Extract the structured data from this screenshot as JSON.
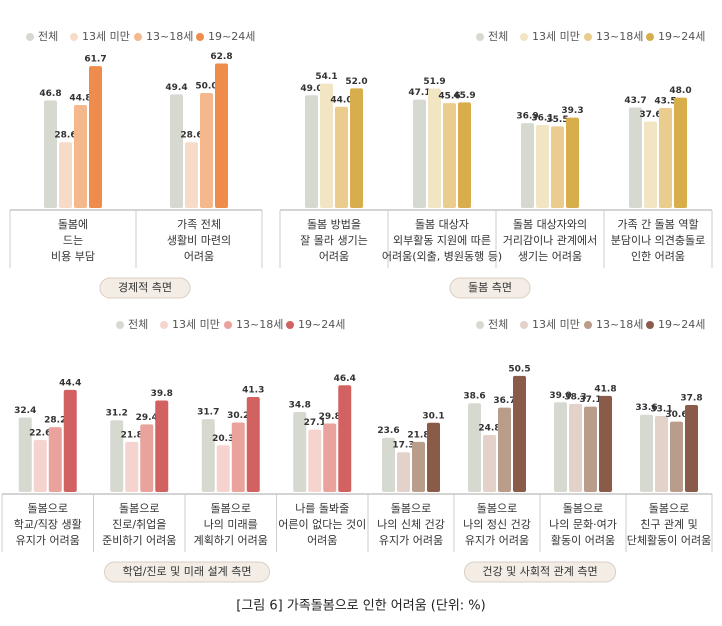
{
  "chart_data": [
    {
      "type": "bar",
      "title": "경제적 측면",
      "categories": [
        [
          "돌봄에",
          "드는",
          "비용 부담"
        ],
        [
          "가족 전체",
          "생활비 마련의",
          "어려움"
        ]
      ],
      "series": [
        {
          "name": "전체",
          "color": "#d6d9d0",
          "values": [
            46.8,
            49.4
          ],
          "value_labels": [
            "46.8",
            "49.4"
          ]
        },
        {
          "name": "13세 미만",
          "color": "#f6dcc8",
          "values": [
            28.6,
            28.6
          ],
          "value_labels": [
            "28.6",
            "28.6"
          ]
        },
        {
          "name": "13~18세",
          "color": "#f4b88c",
          "values": [
            44.8,
            50.0
          ],
          "value_labels": [
            "44.8",
            "50.0"
          ]
        },
        {
          "name": "19~24세",
          "color": "#ef8b4b",
          "values": [
            61.7,
            62.8
          ],
          "value_labels": [
            "61.7",
            "62.8"
          ]
        }
      ]
    },
    {
      "type": "bar",
      "title": "돌봄 측면",
      "categories": [
        [
          "돌봄 방법을",
          "잘 몰라 생기는",
          "어려움"
        ],
        [
          "돌봄 대상자",
          "외부활동 지원에 따른",
          "어려움(외출, 병원동행 등)"
        ],
        [
          "돌봄 대상자와의",
          "거리감이나 관계에서",
          "생기는 어려움"
        ],
        [
          "가족 간 돌봄 역할",
          "분담이나 의견충돌로",
          "인한 어려움"
        ]
      ],
      "series": [
        {
          "name": "전체",
          "color": "#d6d9d0",
          "values": [
            49.0,
            47.1,
            36.9,
            43.7
          ],
          "value_labels": [
            "49.0",
            "47.1",
            "36.9",
            "43.7"
          ]
        },
        {
          "name": "13세 미만",
          "color": "#f1e5c4",
          "values": [
            54.1,
            51.9,
            36.1,
            37.6
          ],
          "value_labels": [
            "54.1",
            "51.9",
            "36.1",
            "37.6"
          ]
        },
        {
          "name": "13~18세",
          "color": "#e9cc8e",
          "values": [
            44.0,
            45.6,
            35.5,
            43.5
          ],
          "value_labels": [
            "44.0",
            "45.6",
            "35.5",
            "43.5"
          ]
        },
        {
          "name": "19~24세",
          "color": "#d8ae4c",
          "values": [
            52.0,
            45.9,
            39.3,
            48.0
          ],
          "value_labels": [
            "52.0",
            "45.9",
            "39.3",
            "48.0"
          ]
        }
      ]
    },
    {
      "type": "bar",
      "title": "학업/진로 및 미래 설계 측면",
      "categories": [
        [
          "돌봄으로",
          "학교/직장 생활",
          "유지가 어려움"
        ],
        [
          "돌봄으로",
          "진로/취업을",
          "준비하기 어려움"
        ],
        [
          "돌봄으로",
          "나의 미래를",
          "계획하기 어려움"
        ],
        [
          "나를 돌봐줄",
          "어른이 없다는 것이",
          "어려움"
        ]
      ],
      "series": [
        {
          "name": "전체",
          "color": "#d6d9d0",
          "values": [
            32.4,
            31.2,
            31.7,
            34.8
          ],
          "value_labels": [
            "32.4",
            "31.2",
            "31.7",
            "34.8"
          ]
        },
        {
          "name": "13세 미만",
          "color": "#f5d4d0",
          "values": [
            22.6,
            21.8,
            20.3,
            27.1
          ],
          "value_labels": [
            "22.6",
            "21.8",
            "20.3",
            "27.1"
          ]
        },
        {
          "name": "13~18세",
          "color": "#e9a29c",
          "values": [
            28.2,
            29.4,
            30.2,
            29.8
          ],
          "value_labels": [
            "28.2",
            "29.4",
            "30.2",
            "29.8"
          ]
        },
        {
          "name": "19~24세",
          "color": "#d26262",
          "values": [
            44.4,
            39.8,
            41.3,
            46.4
          ],
          "value_labels": [
            "44.4",
            "39.8",
            "41.3",
            "46.4"
          ]
        }
      ]
    },
    {
      "type": "bar",
      "title": "건강 및 사회적 관계 측면",
      "categories": [
        [
          "돌봄으로",
          "나의 신체 건강",
          "유지가 어려움"
        ],
        [
          "돌봄으로",
          "나의 정신 건강",
          "유지가 어려움"
        ],
        [
          "돌봄으로",
          "나의 문화·여가",
          "활동이 어려움"
        ],
        [
          "돌봄으로",
          "친구 관계 및",
          "단체활동이 어려움"
        ]
      ],
      "series": [
        {
          "name": "전체",
          "color": "#d6d9d0",
          "values": [
            23.6,
            38.6,
            39.0,
            33.6
          ],
          "value_labels": [
            "23.6",
            "38.6",
            "39.0",
            "33.6"
          ]
        },
        {
          "name": "13세 미만",
          "color": "#e2d2ca",
          "values": [
            17.3,
            24.8,
            38.3,
            33.1
          ],
          "value_labels": [
            "17.3",
            "24.8",
            "38.3",
            "33.1"
          ]
        },
        {
          "name": "13~18세",
          "color": "#b99c8a",
          "values": [
            21.8,
            36.7,
            37.1,
            30.6
          ],
          "value_labels": [
            "21.8",
            "36.7",
            "37.1",
            "30.6"
          ]
        },
        {
          "name": "19~24세",
          "color": "#8b5b49",
          "values": [
            30.1,
            50.5,
            41.8,
            37.8
          ],
          "value_labels": [
            "30.1",
            "50.5",
            "41.8",
            "37.8"
          ]
        }
      ]
    }
  ],
  "caption": "[그림 6] 가족돌봄으로 인한 어려움 (단위: %)"
}
